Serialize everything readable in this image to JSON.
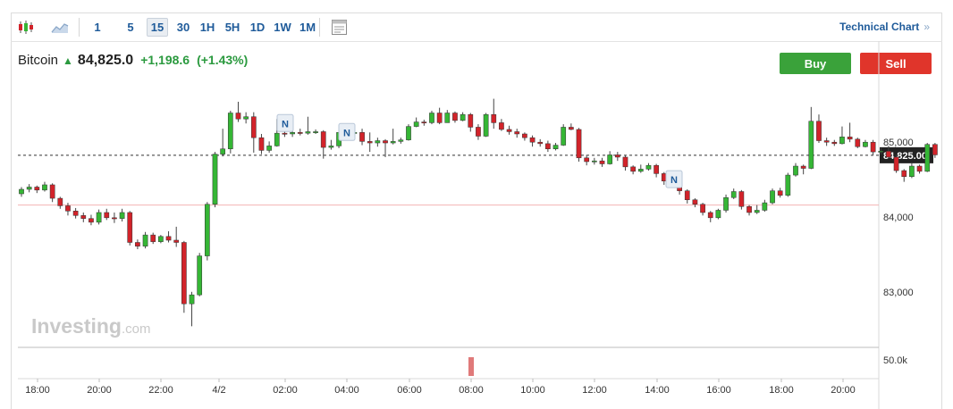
{
  "toolbar": {
    "chart_type_icons": [
      "candlestick-icon",
      "area-chart-icon"
    ],
    "timeframes": [
      {
        "label": "1",
        "active": false
      },
      {
        "label": "5",
        "active": false
      },
      {
        "label": "15",
        "active": true
      },
      {
        "label": "30",
        "active": false
      },
      {
        "label": "1H",
        "active": false
      },
      {
        "label": "5H",
        "active": false
      },
      {
        "label": "1D",
        "active": false
      },
      {
        "label": "1W",
        "active": false
      },
      {
        "label": "1M",
        "active": false
      }
    ],
    "layout_icon": "calendar-icon",
    "technical_link": "Technical Chart",
    "technical_chevron": "»"
  },
  "instrument": {
    "name": "Bitcoin",
    "direction_icon": "arrow-up-icon",
    "price": "84,825.0",
    "change": "+1,198.6",
    "change_pct": "(+1.43%)"
  },
  "actions": {
    "buy_label": "Buy",
    "sell_label": "Sell"
  },
  "colors": {
    "up": "#35b635",
    "down": "#d2232a",
    "accent": "#1f5b9a",
    "buy": "#3aa23a",
    "sell": "#e0352b"
  },
  "watermark": {
    "main": "Investing",
    "suffix": ".com"
  },
  "chart_data": {
    "type": "candlestick",
    "interval": "15",
    "ylim": [
      82500,
      85800
    ],
    "y_ticks": [
      {
        "value": 85000,
        "label": "85,000"
      },
      {
        "value": 84000,
        "label": "84,000"
      },
      {
        "value": 83000,
        "label": "83,000"
      }
    ],
    "last_price": {
      "value": 84825,
      "label": "84,825.00"
    },
    "reference_line": 84160,
    "x_ticks": [
      "18:00",
      "20:00",
      "22:00",
      "4/2",
      "02:00",
      "04:00",
      "06:00",
      "08:00",
      "10:00",
      "12:00",
      "14:00",
      "16:00",
      "18:00",
      "20:00"
    ],
    "volume_tick": "50.0k",
    "volume_marker_tick": "08:00",
    "news_markers": [
      {
        "label": "N",
        "near_tick": "02:00",
        "price": 85250
      },
      {
        "label": "N",
        "near_tick": "04:00",
        "price": 85130
      },
      {
        "label": "N",
        "near_tick": "14:00",
        "price": 84500
      }
    ],
    "candles": [
      [
        84310,
        84370,
        84270,
        84400
      ],
      [
        84370,
        84400,
        84330,
        84440
      ],
      [
        84400,
        84360,
        84320,
        84420
      ],
      [
        84360,
        84430,
        84340,
        84470
      ],
      [
        84430,
        84250,
        84200,
        84450
      ],
      [
        84250,
        84150,
        84110,
        84270
      ],
      [
        84150,
        84080,
        84020,
        84190
      ],
      [
        84080,
        84020,
        83980,
        84120
      ],
      [
        84020,
        83980,
        83930,
        84060
      ],
      [
        83980,
        83930,
        83890,
        84030
      ],
      [
        83930,
        84060,
        83900,
        84100
      ],
      [
        84060,
        83990,
        83960,
        84110
      ],
      [
        83990,
        83980,
        83920,
        84060
      ],
      [
        83980,
        84060,
        83940,
        84110
      ],
      [
        84060,
        83660,
        83620,
        84080
      ],
      [
        83660,
        83610,
        83570,
        83700
      ],
      [
        83610,
        83760,
        83580,
        83800
      ],
      [
        83760,
        83670,
        83640,
        83790
      ],
      [
        83670,
        83740,
        83650,
        83760
      ],
      [
        83740,
        83690,
        83660,
        83810
      ],
      [
        83690,
        83660,
        83600,
        83870
      ],
      [
        83660,
        82840,
        82720,
        83680
      ],
      [
        82840,
        82960,
        82540,
        83000
      ],
      [
        82960,
        83480,
        82940,
        83520
      ],
      [
        83480,
        84170,
        83420,
        84200
      ],
      [
        84170,
        84840,
        84130,
        84870
      ],
      [
        84840,
        84910,
        84810,
        85180
      ],
      [
        84910,
        85390,
        84850,
        85420
      ],
      [
        85390,
        85310,
        85270,
        85540
      ],
      [
        85310,
        85340,
        85250,
        85400
      ],
      [
        85340,
        85060,
        84860,
        85400
      ],
      [
        85060,
        84890,
        84840,
        85110
      ],
      [
        84890,
        84950,
        84860,
        85010
      ],
      [
        84950,
        85120,
        84940,
        85310
      ],
      [
        85120,
        85110,
        85070,
        85200
      ],
      [
        85110,
        85130,
        85070,
        85170
      ],
      [
        85130,
        85120,
        85090,
        85180
      ],
      [
        85120,
        85140,
        85100,
        85340
      ],
      [
        85140,
        85140,
        85110,
        85170
      ],
      [
        85140,
        84930,
        84780,
        85160
      ],
      [
        84930,
        84950,
        84900,
        85030
      ],
      [
        84950,
        85130,
        84920,
        85170
      ],
      [
        85130,
        85120,
        85040,
        85160
      ],
      [
        85120,
        85130,
        85090,
        85160
      ],
      [
        85130,
        85010,
        84960,
        85180
      ],
      [
        85010,
        84990,
        84870,
        85130
      ],
      [
        84990,
        85020,
        84940,
        85060
      ],
      [
        85020,
        84990,
        84800,
        85040
      ],
      [
        84990,
        85010,
        84970,
        85180
      ],
      [
        85010,
        85030,
        84980,
        85060
      ],
      [
        85030,
        85210,
        85020,
        85240
      ],
      [
        85210,
        85270,
        85200,
        85330
      ],
      [
        85270,
        85260,
        85220,
        85300
      ],
      [
        85260,
        85390,
        85240,
        85420
      ],
      [
        85390,
        85260,
        85240,
        85460
      ],
      [
        85260,
        85390,
        85260,
        85430
      ],
      [
        85390,
        85290,
        85260,
        85410
      ],
      [
        85290,
        85370,
        85280,
        85400
      ],
      [
        85370,
        85200,
        85140,
        85390
      ],
      [
        85200,
        85080,
        85030,
        85240
      ],
      [
        85080,
        85370,
        85070,
        85390
      ],
      [
        85370,
        85260,
        85180,
        85580
      ],
      [
        85260,
        85170,
        85150,
        85310
      ],
      [
        85170,
        85140,
        85100,
        85220
      ],
      [
        85140,
        85110,
        85060,
        85180
      ],
      [
        85110,
        85060,
        85020,
        85130
      ],
      [
        85060,
        85000,
        84940,
        85090
      ],
      [
        85000,
        84980,
        84940,
        85040
      ],
      [
        84980,
        84910,
        84870,
        85020
      ],
      [
        84910,
        84960,
        84890,
        84990
      ],
      [
        84960,
        85200,
        84950,
        85240
      ],
      [
        85200,
        85170,
        85160,
        85250
      ],
      [
        85170,
        84790,
        84740,
        85190
      ],
      [
        84790,
        84740,
        84690,
        84830
      ],
      [
        84740,
        84750,
        84700,
        84790
      ],
      [
        84750,
        84710,
        84670,
        84790
      ],
      [
        84710,
        84830,
        84700,
        84880
      ],
      [
        84830,
        84800,
        84750,
        84870
      ],
      [
        84800,
        84670,
        84620,
        84820
      ],
      [
        84670,
        84610,
        84570,
        84690
      ],
      [
        84610,
        84640,
        84590,
        84700
      ],
      [
        84640,
        84690,
        84620,
        84720
      ],
      [
        84690,
        84580,
        84530,
        84710
      ],
      [
        84580,
        84480,
        84430,
        84600
      ],
      [
        84480,
        84510,
        84460,
        84540
      ],
      [
        84510,
        84350,
        84300,
        84530
      ],
      [
        84350,
        84230,
        84180,
        84370
      ],
      [
        84230,
        84170,
        84130,
        84250
      ],
      [
        84170,
        84060,
        84020,
        84190
      ],
      [
        84060,
        83990,
        83930,
        84080
      ],
      [
        83990,
        84090,
        83970,
        84110
      ],
      [
        84090,
        84260,
        84060,
        84300
      ],
      [
        84260,
        84340,
        84240,
        84380
      ],
      [
        84340,
        84140,
        84100,
        84360
      ],
      [
        84140,
        84060,
        84020,
        84160
      ],
      [
        84060,
        84090,
        84040,
        84160
      ],
      [
        84090,
        84190,
        84070,
        84230
      ],
      [
        84190,
        84350,
        84170,
        84380
      ],
      [
        84350,
        84290,
        84260,
        84390
      ],
      [
        84290,
        84560,
        84270,
        84590
      ],
      [
        84560,
        84680,
        84540,
        84720
      ],
      [
        84680,
        84650,
        84570,
        84700
      ],
      [
        84650,
        85280,
        84640,
        85470
      ],
      [
        85280,
        85020,
        84990,
        85370
      ],
      [
        85020,
        85000,
        84950,
        85060
      ],
      [
        85000,
        84980,
        84950,
        85030
      ],
      [
        84980,
        85070,
        84970,
        85210
      ],
      [
        85070,
        85040,
        85000,
        85260
      ],
      [
        85040,
        84940,
        84920,
        85060
      ],
      [
        84940,
        85000,
        84930,
        85030
      ],
      [
        85000,
        84870,
        84830,
        85030
      ],
      [
        84870,
        84880,
        84840,
        84920
      ],
      [
        84880,
        84800,
        84780,
        84950
      ],
      [
        84800,
        84620,
        84590,
        84830
      ],
      [
        84620,
        84540,
        84470,
        84640
      ],
      [
        84540,
        84680,
        84520,
        84720
      ],
      [
        84680,
        84610,
        84580,
        84700
      ],
      [
        84610,
        84970,
        84600,
        84990
      ],
      [
        84970,
        84830,
        84790,
        84990
      ]
    ],
    "volume_bar": {
      "value": 50000
    }
  }
}
